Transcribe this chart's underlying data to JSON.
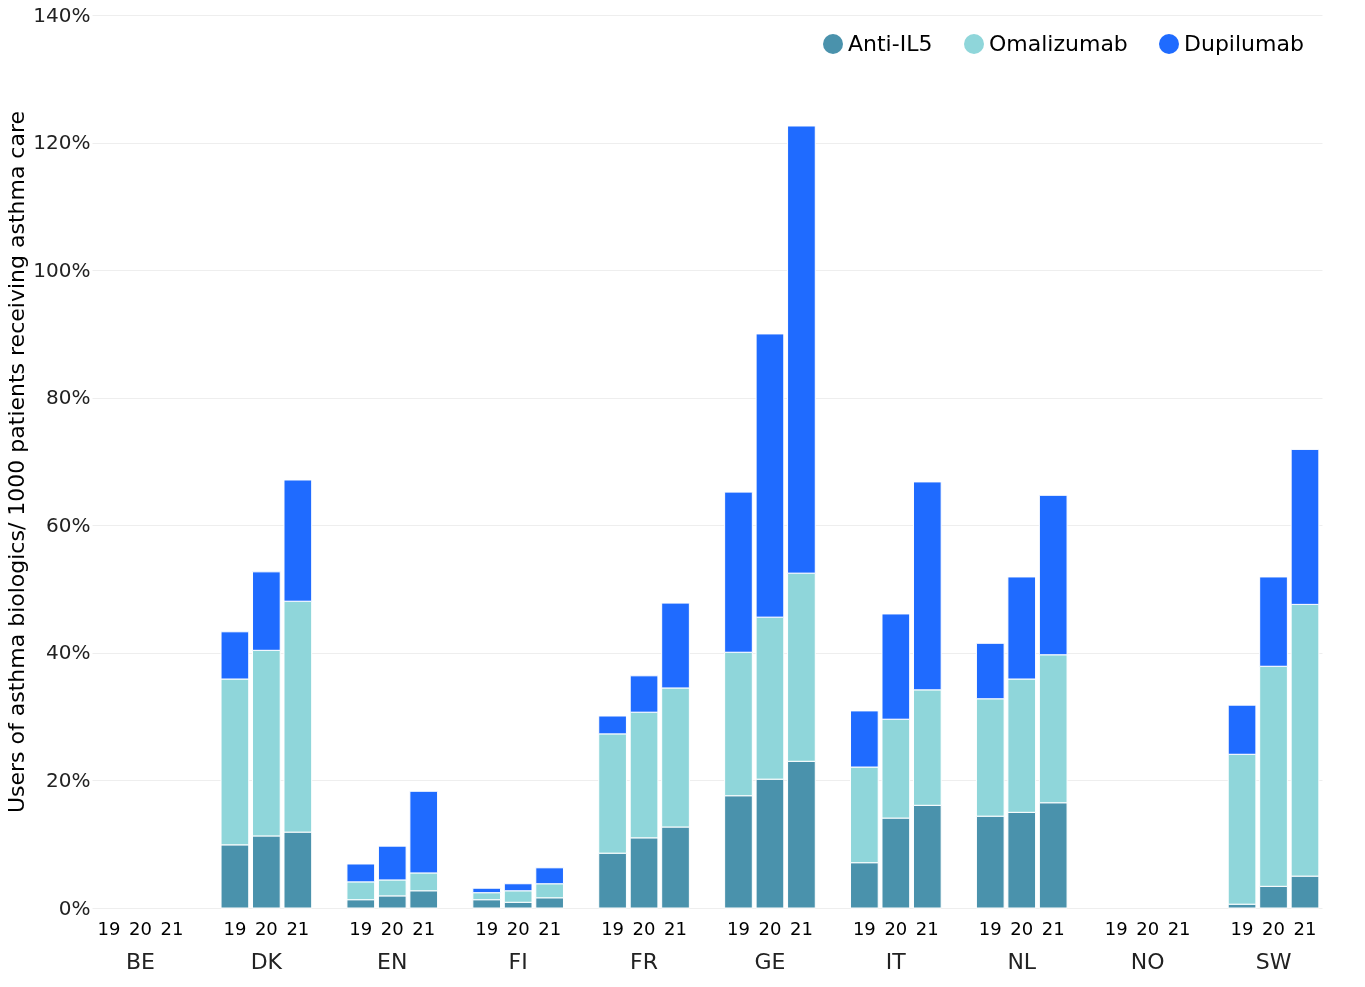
{
  "chart_data": {
    "type": "bar",
    "stacked": true,
    "ylabel": "Users of asthma biologics/ 1000 patients receiving asthma care",
    "categories": [
      "19",
      "20",
      "21",
      "19",
      "20",
      "21",
      "19",
      "20",
      "21",
      "19",
      "20",
      "21",
      "19",
      "20",
      "21",
      "19",
      "20",
      "21",
      "19",
      "20",
      "21",
      "19",
      "20",
      "21",
      "19",
      "20",
      "21",
      "19",
      "20",
      "21"
    ],
    "annotations": [
      "BE",
      "DK",
      "EN",
      "FI",
      "FR",
      "GE",
      "IT",
      "NL",
      "NO",
      "SW"
    ],
    "series": [
      {
        "name": "Anti-IL5",
        "color": "#4a92ac",
        "values": [
          null,
          null,
          null,
          9.9,
          11.3,
          11.9,
          1.3,
          1.9,
          2.7,
          1.3,
          0.9,
          1.6,
          8.6,
          11.0,
          12.7,
          17.6,
          20.2,
          23.0,
          7.1,
          14.1,
          16.1,
          14.4,
          15.0,
          16.5,
          null,
          null,
          null,
          0.6,
          3.4,
          5.0
        ]
      },
      {
        "name": "Omalizumab",
        "color": "#8fd6da",
        "values": [
          null,
          null,
          null,
          26.0,
          29.1,
          36.2,
          2.8,
          2.5,
          2.8,
          1.1,
          1.8,
          2.2,
          18.7,
          19.7,
          21.8,
          22.5,
          25.4,
          29.5,
          15.0,
          15.5,
          18.1,
          18.4,
          20.9,
          23.2,
          null,
          null,
          null,
          23.5,
          34.5,
          42.6
        ]
      },
      {
        "name": "Dupilumab",
        "color": "#1f6bff",
        "values": [
          null,
          null,
          null,
          7.4,
          12.3,
          19.0,
          2.8,
          5.3,
          12.8,
          0.7,
          1.1,
          2.5,
          2.8,
          5.7,
          13.3,
          25.1,
          44.4,
          70.1,
          8.8,
          16.5,
          32.6,
          8.7,
          16.0,
          25.0,
          null,
          null,
          null,
          7.7,
          14.0,
          24.3
        ]
      }
    ],
    "ylim": [
      0,
      140
    ],
    "yticks": [
      {
        "value": 0,
        "label": "0%"
      },
      {
        "value": 20,
        "label": "20%"
      },
      {
        "value": 40,
        "label": "40%"
      },
      {
        "value": 60,
        "label": "60%"
      },
      {
        "value": 80,
        "label": "80%"
      },
      {
        "value": 100,
        "label": "100%"
      },
      {
        "value": 120,
        "label": "120%"
      },
      {
        "value": 140,
        "label": "140%"
      }
    ],
    "grid": "y",
    "legend": "top right"
  }
}
